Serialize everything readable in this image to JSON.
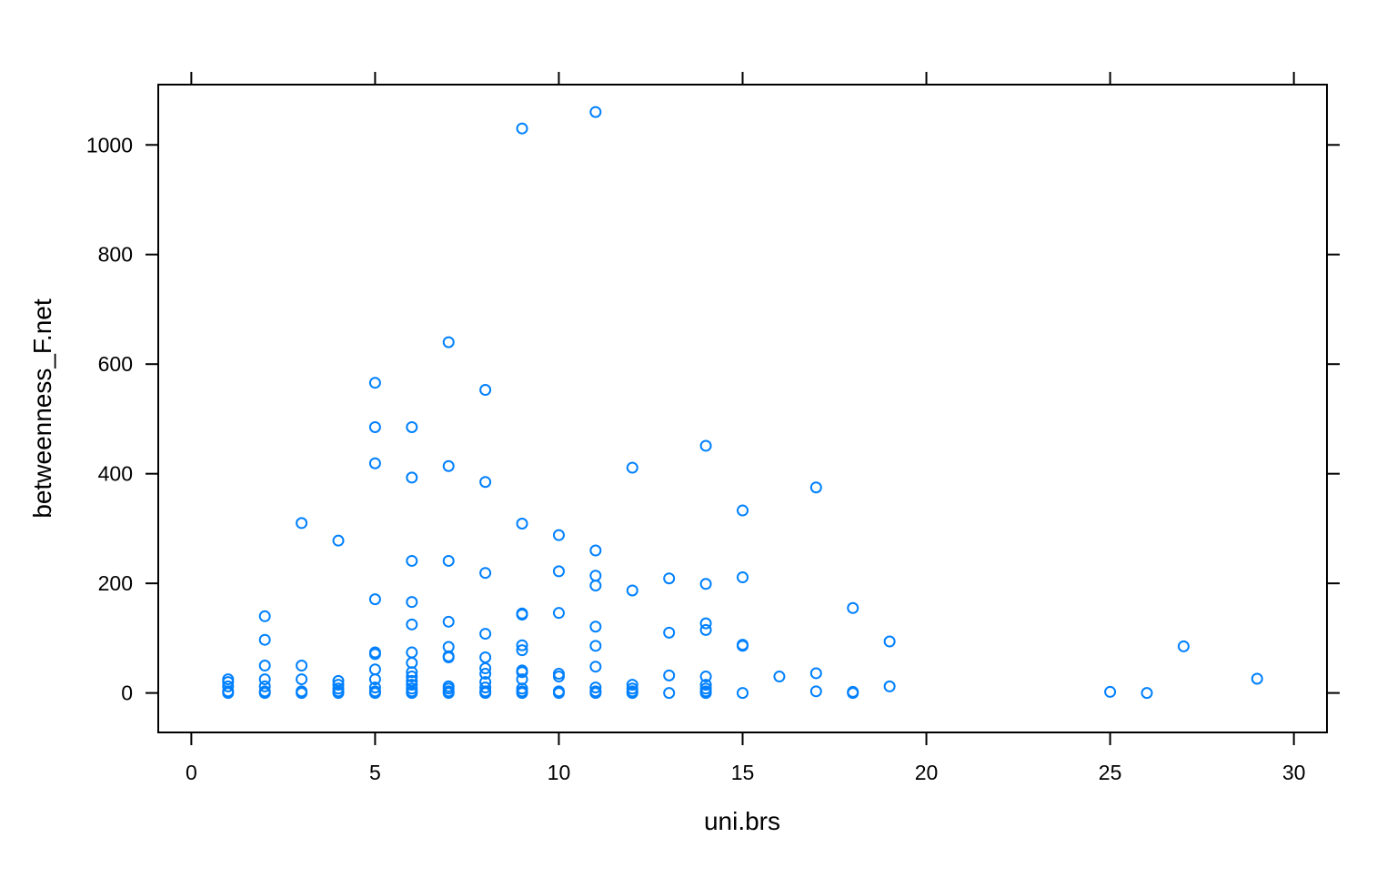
{
  "chart_data": {
    "type": "scatter",
    "xlabel": "uni.brs",
    "ylabel": "betweenness_F.net",
    "xlim": [
      -0.9,
      30.9
    ],
    "ylim": [
      -72,
      1110
    ],
    "xticks": [
      0,
      5,
      10,
      15,
      20,
      25,
      30
    ],
    "yticks": [
      0,
      200,
      400,
      600,
      800,
      1000
    ],
    "grid": false,
    "legend": "none",
    "marker": "open-circle",
    "point_color": "#0080FF",
    "points": [
      [
        1,
        0
      ],
      [
        1,
        3
      ],
      [
        1,
        12
      ],
      [
        1,
        20
      ],
      [
        1,
        25
      ],
      [
        2,
        0
      ],
      [
        2,
        3
      ],
      [
        2,
        12
      ],
      [
        2,
        25
      ],
      [
        2,
        50
      ],
      [
        2,
        97
      ],
      [
        2,
        140
      ],
      [
        3,
        0
      ],
      [
        3,
        3
      ],
      [
        3,
        25
      ],
      [
        3,
        50
      ],
      [
        3,
        310
      ],
      [
        4,
        0
      ],
      [
        4,
        3
      ],
      [
        4,
        8
      ],
      [
        4,
        15
      ],
      [
        4,
        22
      ],
      [
        4,
        278
      ],
      [
        5,
        0
      ],
      [
        5,
        3
      ],
      [
        5,
        10
      ],
      [
        5,
        25
      ],
      [
        5,
        43
      ],
      [
        5,
        71
      ],
      [
        5,
        74
      ],
      [
        5,
        171
      ],
      [
        5,
        419
      ],
      [
        5,
        485
      ],
      [
        5,
        566
      ],
      [
        6,
        0
      ],
      [
        6,
        3
      ],
      [
        6,
        8
      ],
      [
        6,
        15
      ],
      [
        6,
        22
      ],
      [
        6,
        30
      ],
      [
        6,
        38
      ],
      [
        6,
        55
      ],
      [
        6,
        74
      ],
      [
        6,
        125
      ],
      [
        6,
        166
      ],
      [
        6,
        241
      ],
      [
        6,
        393
      ],
      [
        6,
        485
      ],
      [
        7,
        0
      ],
      [
        7,
        3
      ],
      [
        7,
        8
      ],
      [
        7,
        12
      ],
      [
        7,
        65
      ],
      [
        7,
        67
      ],
      [
        7,
        84
      ],
      [
        7,
        130
      ],
      [
        7,
        241
      ],
      [
        7,
        414
      ],
      [
        7,
        640
      ],
      [
        8,
        0
      ],
      [
        8,
        3
      ],
      [
        8,
        10
      ],
      [
        8,
        20
      ],
      [
        8,
        35
      ],
      [
        8,
        45
      ],
      [
        8,
        65
      ],
      [
        8,
        108
      ],
      [
        8,
        219
      ],
      [
        8,
        385
      ],
      [
        8,
        553
      ],
      [
        9,
        0
      ],
      [
        9,
        3
      ],
      [
        9,
        8
      ],
      [
        9,
        25
      ],
      [
        9,
        38
      ],
      [
        9,
        41
      ],
      [
        9,
        78
      ],
      [
        9,
        87
      ],
      [
        9,
        143
      ],
      [
        9,
        145
      ],
      [
        9,
        309
      ],
      [
        9,
        1030
      ],
      [
        10,
        0
      ],
      [
        10,
        3
      ],
      [
        10,
        30
      ],
      [
        10,
        35
      ],
      [
        10,
        146
      ],
      [
        10,
        222
      ],
      [
        10,
        288
      ],
      [
        11,
        0
      ],
      [
        11,
        3
      ],
      [
        11,
        10
      ],
      [
        11,
        48
      ],
      [
        11,
        86
      ],
      [
        11,
        121
      ],
      [
        11,
        196
      ],
      [
        11,
        214
      ],
      [
        11,
        260
      ],
      [
        11,
        1060
      ],
      [
        12,
        0
      ],
      [
        12,
        3
      ],
      [
        12,
        8
      ],
      [
        12,
        15
      ],
      [
        12,
        187
      ],
      [
        12,
        411
      ],
      [
        13,
        0
      ],
      [
        13,
        32
      ],
      [
        13,
        110
      ],
      [
        13,
        209
      ],
      [
        14,
        0
      ],
      [
        14,
        3
      ],
      [
        14,
        8
      ],
      [
        14,
        15
      ],
      [
        14,
        30
      ],
      [
        14,
        115
      ],
      [
        14,
        127
      ],
      [
        14,
        199
      ],
      [
        14,
        451
      ],
      [
        15,
        0
      ],
      [
        15,
        86
      ],
      [
        15,
        88
      ],
      [
        15,
        211
      ],
      [
        15,
        333
      ],
      [
        16,
        30
      ],
      [
        17,
        3
      ],
      [
        17,
        36
      ],
      [
        17,
        375
      ],
      [
        18,
        0
      ],
      [
        18,
        2
      ],
      [
        18,
        155
      ],
      [
        19,
        12
      ],
      [
        19,
        94
      ],
      [
        25,
        2
      ],
      [
        26,
        0
      ],
      [
        27,
        85
      ],
      [
        29,
        26
      ]
    ]
  }
}
